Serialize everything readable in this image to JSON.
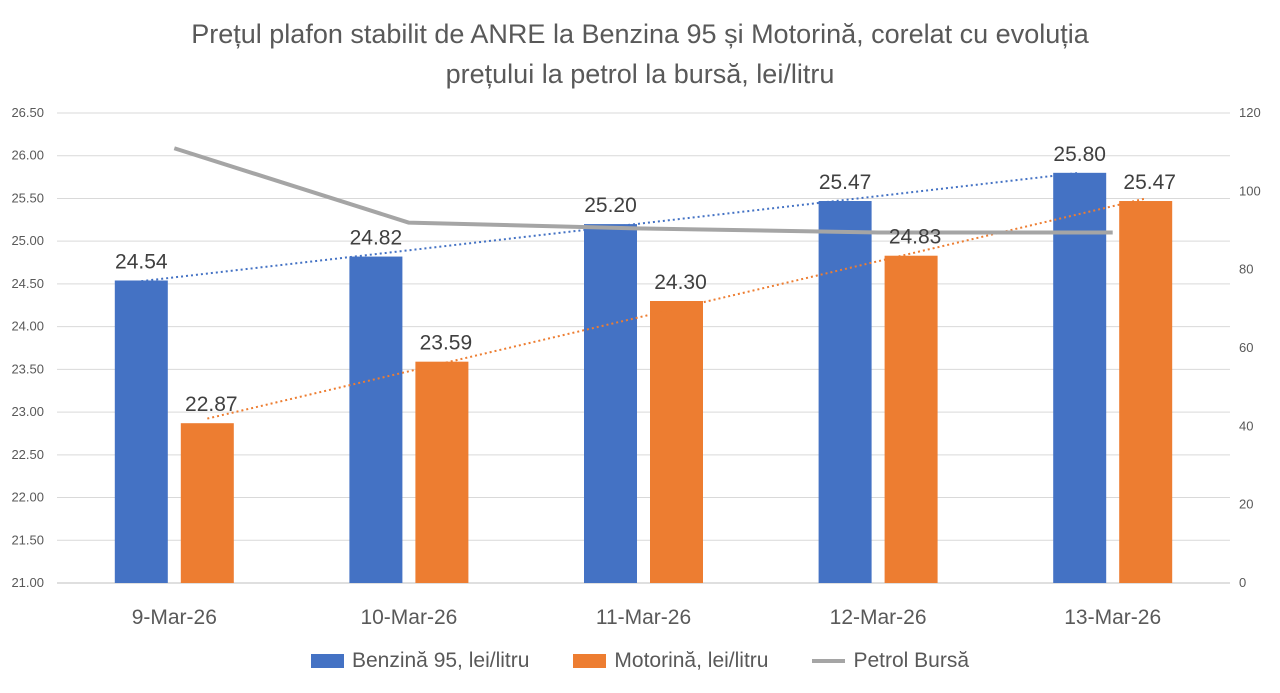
{
  "chart_data": {
    "type": "bar",
    "title_line1": "Prețul plafon stabilit de ANRE la Benzina 95 și Motorină, corelat cu evoluția",
    "title_line2": "prețului la petrol la bursă, lei/litru",
    "categories": [
      "9-Mar-26",
      "10-Mar-26",
      "11-Mar-26",
      "12-Mar-26",
      "13-Mar-26"
    ],
    "series": [
      {
        "name": "Benzină 95, lei/litru",
        "type": "bar",
        "axis": "left",
        "color": "#4472C4",
        "values": [
          24.54,
          24.82,
          25.2,
          25.47,
          25.8
        ],
        "labels": [
          "24.54",
          "24.82",
          "25.20",
          "25.47",
          "25.80"
        ],
        "trendline": "linear"
      },
      {
        "name": "Motorină, lei/litru",
        "type": "bar",
        "axis": "left",
        "color": "#ED7D31",
        "values": [
          22.87,
          23.59,
          24.3,
          24.83,
          25.47
        ],
        "labels": [
          "22.87",
          "23.59",
          "24.30",
          "24.83",
          "25.47"
        ],
        "trendline": "linear"
      },
      {
        "name": "Petrol Bursă",
        "type": "line",
        "axis": "right",
        "color": "#A5A5A5",
        "values": [
          111,
          92,
          90.5,
          89.5,
          89.5
        ]
      }
    ],
    "y_left": {
      "min": 21.0,
      "max": 26.5,
      "ticks": [
        "21.00",
        "21.50",
        "22.00",
        "22.50",
        "23.00",
        "23.50",
        "24.00",
        "24.50",
        "25.00",
        "25.50",
        "26.00",
        "26.50"
      ]
    },
    "y_right": {
      "min": 0,
      "max": 120,
      "ticks": [
        "0",
        "20",
        "40",
        "60",
        "80",
        "100",
        "120"
      ]
    },
    "grid": true,
    "legend_position": "bottom"
  }
}
